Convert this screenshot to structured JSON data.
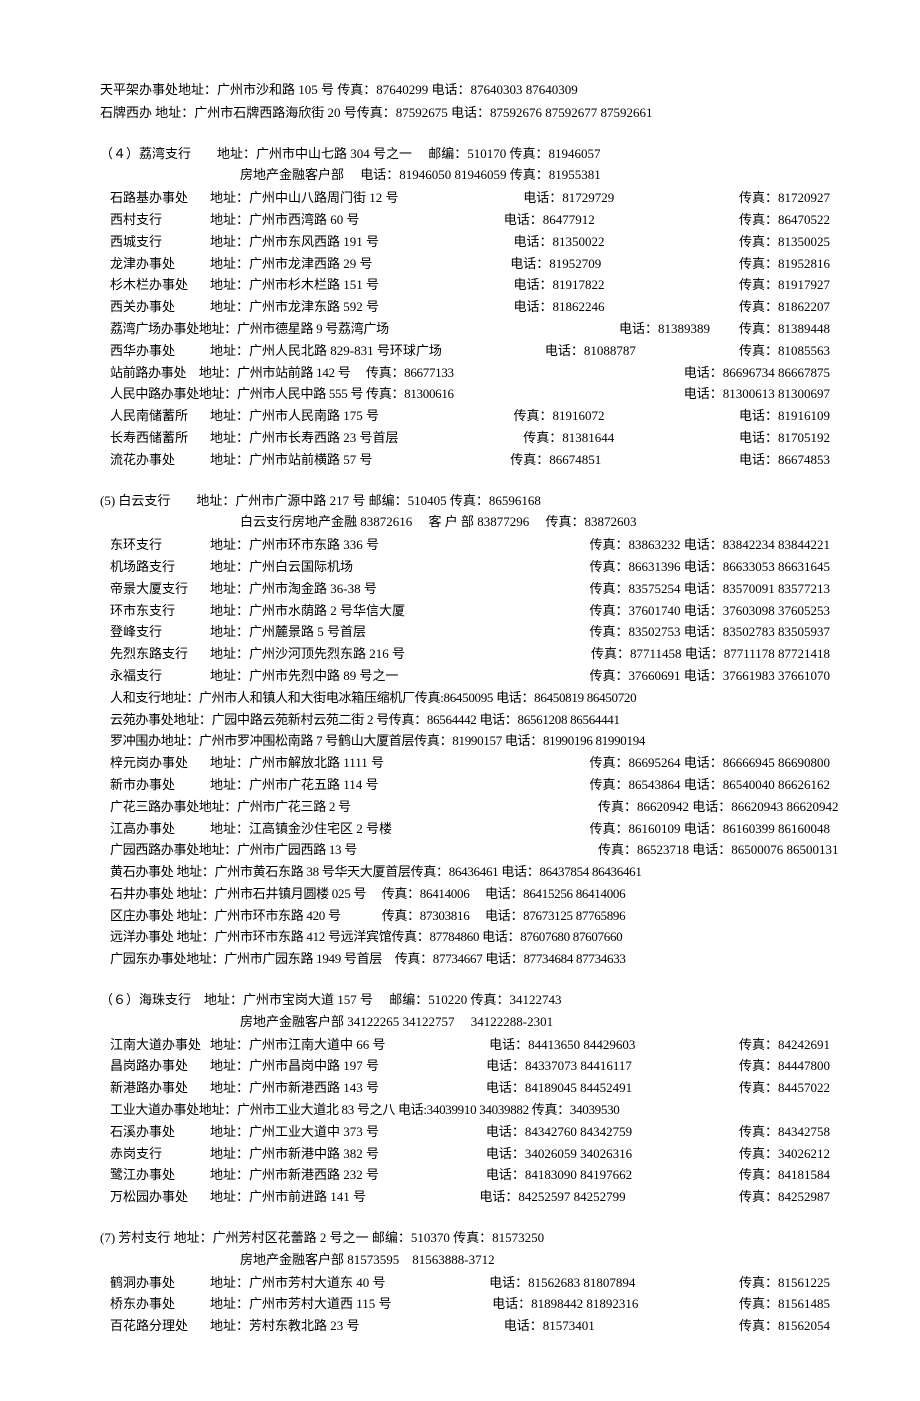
{
  "intro": [
    "天平架办事处地址：广州市沙和路 105 号   传真：87640299  电话：87640303  87640309",
    "石牌西办  地址：广州市石牌西路海欣街 20 号传真：87592675  电话：87592676 87592677 87592661"
  ],
  "sections": [
    {
      "header": "（４）荔湾支行　　地址：广州市中山七路 304 号之一　 邮编：510170  传真：81946057",
      "sub": "房地产金融客户部　 电话：81946050 81946059  传真：81955381",
      "rows": [
        {
          "name": "石路基办事处",
          "addr": "地址：广州中山八路周门街 12 号",
          "mid": "电话：81729729",
          "right": "传真：81720927"
        },
        {
          "name": "西村支行",
          "addr": "地址：广州市西湾路 60 号",
          "mid": "电话：86477912",
          "right": "传真：86470522"
        },
        {
          "name": "西城支行",
          "addr": "地址：广州市东风西路 191 号",
          "mid": "电话：81350022",
          "right": "传真：81350025"
        },
        {
          "name": "龙津办事处",
          "addr": "地址：广州市龙津西路 29 号",
          "mid": "电话：81952709",
          "right": "传真：81952816"
        },
        {
          "name": "杉木栏办事处",
          "addr": "地址：广州市杉木栏路 151 号",
          "mid": "电话：81917822",
          "right": "传真：81917927"
        },
        {
          "name": "西关办事处",
          "addr": "地址：广州市龙津东路 592 号",
          "mid": "电话：81862246",
          "right": "传真：81862207"
        },
        {
          "name": "",
          "addr": "荔湾广场办事处地址：广州市德星路 9 号荔湾广场",
          "mid": "电话：81389389",
          "right": "传真：81389448",
          "flat": true
        },
        {
          "name": "西华办事处",
          "addr": "地址：广州人民北路 829-831 号环球广场",
          "mid": "电话：81088787",
          "right": "传真：81085563"
        },
        {
          "name": "",
          "addr": "站前路办事处　地址：广州市站前路 142 号　  传真：86677133",
          "mid": "",
          "right": "电话：86696734 86667875",
          "flat": true
        },
        {
          "name": "",
          "addr": "人民中路办事处地址：广州市人民中路 555 号  传真：81300616",
          "mid": "",
          "right": "电话：81300613 81300697",
          "flat": true
        },
        {
          "name": "人民南储蓄所",
          "addr": "地址：广州市人民南路 175 号",
          "mid": "传真：81916072",
          "right": "电话：81916109"
        },
        {
          "name": "长寿西储蓄所",
          "addr": "地址：广州市长寿西路 23 号首层",
          "mid": "传真：81381644",
          "right": "电话：81705192"
        },
        {
          "name": "流花办事处",
          "addr": "地址：广州市站前横路 57 号",
          "mid": "传真：86674851",
          "right": "电话：86674853"
        }
      ]
    },
    {
      "header": " (5) 白云支行　　地址：广州市广源中路 217 号  邮编：510405  传真：86596168",
      "sub": "白云支行房地产金融 83872616　 客 户 部 83877296　 传真：83872603",
      "rows": [
        {
          "name": "东环支行",
          "addr": "地址：广州市环市东路 336 号",
          "mid": "传真：83863232 电话：83842234 83844221",
          "right": ""
        },
        {
          "name": "机场路支行",
          "addr": "地址：广州白云国际机场",
          "mid": "传真：86631396 电话：86633053 86631645",
          "right": ""
        },
        {
          "name": "帝景大厦支行",
          "addr": "地址：广州市淘金路 36-38 号",
          "mid": "传真：83575254 电话：83570091 83577213",
          "right": ""
        },
        {
          "name": "环市东支行",
          "addr": "地址：广州市水荫路 2 号华信大厦",
          "mid": "传真：37601740 电话：37603098 37605253",
          "right": ""
        },
        {
          "name": "登峰支行",
          "addr": "地址：广州麓景路 5 号首层",
          "mid": "传真：83502753 电话：83502783 83505937",
          "right": ""
        },
        {
          "name": "先烈东路支行",
          "addr": "地址：广州沙河顶先烈东路 216 号",
          "mid": "传真：87711458 电话：87711178 87721418",
          "right": ""
        },
        {
          "name": "永福支行",
          "addr": "地址：广州市先烈中路 89 号之一",
          "mid": "传真：37660691 电话：37661983 37661070",
          "right": ""
        },
        {
          "name": "",
          "addr": "人和支行地址：广州市人和镇人和大街电冰箱压缩机厂传真:86450095 电话：86450819 86450720",
          "mid": "",
          "right": "",
          "flat": true
        },
        {
          "name": "",
          "addr": "云苑办事处地址：广园中路云苑新村云苑二街 2 号传真：86564442 电话：86561208 86564441",
          "mid": "",
          "right": "",
          "flat": true
        },
        {
          "name": "",
          "addr": "罗冲围办地址：广州市罗冲围松南路 7 号鹤山大厦首层传真：81990157  电话：81990196 81990194",
          "mid": "",
          "right": "",
          "flat": true
        },
        {
          "name": "梓元岗办事处",
          "addr": "地址：广州市解放北路 1111 号",
          "mid": "传真：86695264 电话：86666945 86690800",
          "right": ""
        },
        {
          "name": "新市办事处",
          "addr": "地址：广州市广花五路 114 号",
          "mid": "传真：86543864 电话：86540040 86626162",
          "right": ""
        },
        {
          "name": "",
          "addr": "广花三路办事处地址：广州市广花三路 2 号",
          "mid": "传真：86620942 电话：86620943 86620942",
          "right": "",
          "flat": true
        },
        {
          "name": "江高办事处",
          "addr": "地址：江高镇金沙住宅区 2 号楼",
          "mid": "传真：86160109 电话：86160399 86160048",
          "right": ""
        },
        {
          "name": "",
          "addr": "广园西路办事处地址：广州市广园西路 13 号",
          "mid": "传真：86523718 电话：86500076 86500131",
          "right": "",
          "flat": true
        },
        {
          "name": "",
          "addr": "黄石办事处 地址：广州市黄石东路 38 号华天大厦首层传真：86436461 电话：86437854 86436461",
          "mid": "",
          "right": "",
          "flat": true
        },
        {
          "name": "",
          "addr": "石井办事处 地址：广州市石井镇月圆楼 025 号　 传真：86414006　 电话：86415256 86414006",
          "mid": "",
          "right": "",
          "flat": true
        },
        {
          "name": "",
          "addr": "区庄办事处 地址：广州市环市东路 420 号　　　 传真：87303816　 电话：87673125 87765896",
          "mid": "",
          "right": "",
          "flat": true
        },
        {
          "name": "",
          "addr": "远洋办事处 地址：广州市环市东路 412 号远洋宾馆传真：87784860  电话：87607680 87607660",
          "mid": "",
          "right": "",
          "flat": true
        },
        {
          "name": "",
          "addr": "广园东办事处地址：广州市广园东路 1949 号首层　传真：87734667  电话：87734684 87734633",
          "mid": "",
          "right": "",
          "flat": true
        }
      ]
    },
    {
      "header": "（６）海珠支行　地址：广州市宝岗大道 157 号　 邮编：510220 传真：34122743",
      "sub": "房地产金融客户部 34122265 34122757　 34122288-2301",
      "rows": [
        {
          "name": "江南大道办事处",
          "addr": "地址：广州市江南大道中 66 号",
          "mid": "电话：84413650 84429603",
          "right": "传真：84242691"
        },
        {
          "name": "昌岗路办事处",
          "addr": "地址：广州市昌岗中路 197 号",
          "mid": "电话：84337073 84416117",
          "right": "传真：84447800"
        },
        {
          "name": "新港路办事处",
          "addr": "地址：广州市新港西路 143 号",
          "mid": "电话：84189045 84452491",
          "right": "传真：84457022"
        },
        {
          "name": "",
          "addr": "工业大道办事处地址：广州市工业大道北 83 号之八  电话:34039910 34039882 传真：34039530",
          "mid": "",
          "right": "",
          "flat": true
        },
        {
          "name": "石溪办事处",
          "addr": "地址：广州工业大道中 373 号",
          "mid": "电话：84342760 84342759",
          "right": "传真：84342758"
        },
        {
          "name": "赤岗支行",
          "addr": "地址：广州市新港中路 382 号",
          "mid": "电话：34026059 34026316",
          "right": "传真：34026212"
        },
        {
          "name": "鹭江办事处",
          "addr": "地址：广州市新港西路 232 号",
          "mid": "电话：84183090 84197662",
          "right": "传真：84181584"
        },
        {
          "name": "万松园办事处",
          "addr": "地址：广州市前进路 141 号",
          "mid": "电话：84252597 84252799",
          "right": "传真：84252987"
        }
      ]
    },
    {
      "header": " (7) 芳村支行  地址：广州芳村区花蕾路 2 号之一  邮编：510370  传真：81573250",
      "sub": "房地产金融客户部 81573595　81563888-3712",
      "rows": [
        {
          "name": "鹤洞办事处",
          "addr": "地址：广州市芳村大道东 40 号",
          "mid": "电话：81562683 81807894",
          "right": "传真：81561225"
        },
        {
          "name": "桥东办事处",
          "addr": "地址：广州市芳村大道西 115 号",
          "mid": "电话：81898442 81892316",
          "right": "传真：81561485"
        },
        {
          "name": "百花路分理处",
          "addr": "地址：芳村东教北路 23 号",
          "mid": "电话：81573401",
          "right": "传真：81562054"
        }
      ]
    }
  ]
}
